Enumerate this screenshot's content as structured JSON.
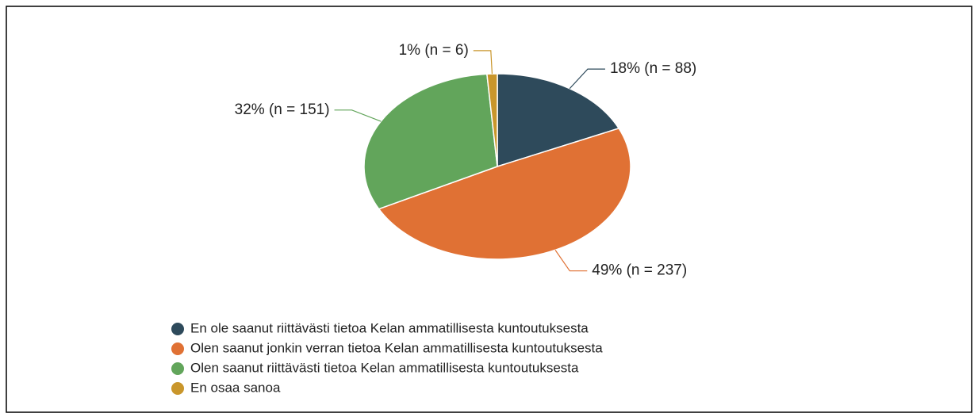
{
  "chart_data": {
    "type": "pie",
    "categories": [
      "En ole saanut riittävästi tietoa Kelan ammatillisesta kuntoutuksesta",
      "Olen saanut jonkin verran tietoa Kelan ammatillisesta kuntoutuksesta",
      "Olen saanut riittävästi tietoa Kelan ammatillisesta kuntoutuksesta",
      "En osaa sanoa"
    ],
    "values": [
      88,
      237,
      151,
      6
    ],
    "value_labels": [
      "18% (n = 88)",
      "49% (n = 237)",
      "32% (n = 151)",
      "1% (n = 6)"
    ],
    "colors": [
      "#2e4a5b",
      "#e07134",
      "#62a55b",
      "#c9962b"
    ],
    "legend": "bottom-left"
  }
}
